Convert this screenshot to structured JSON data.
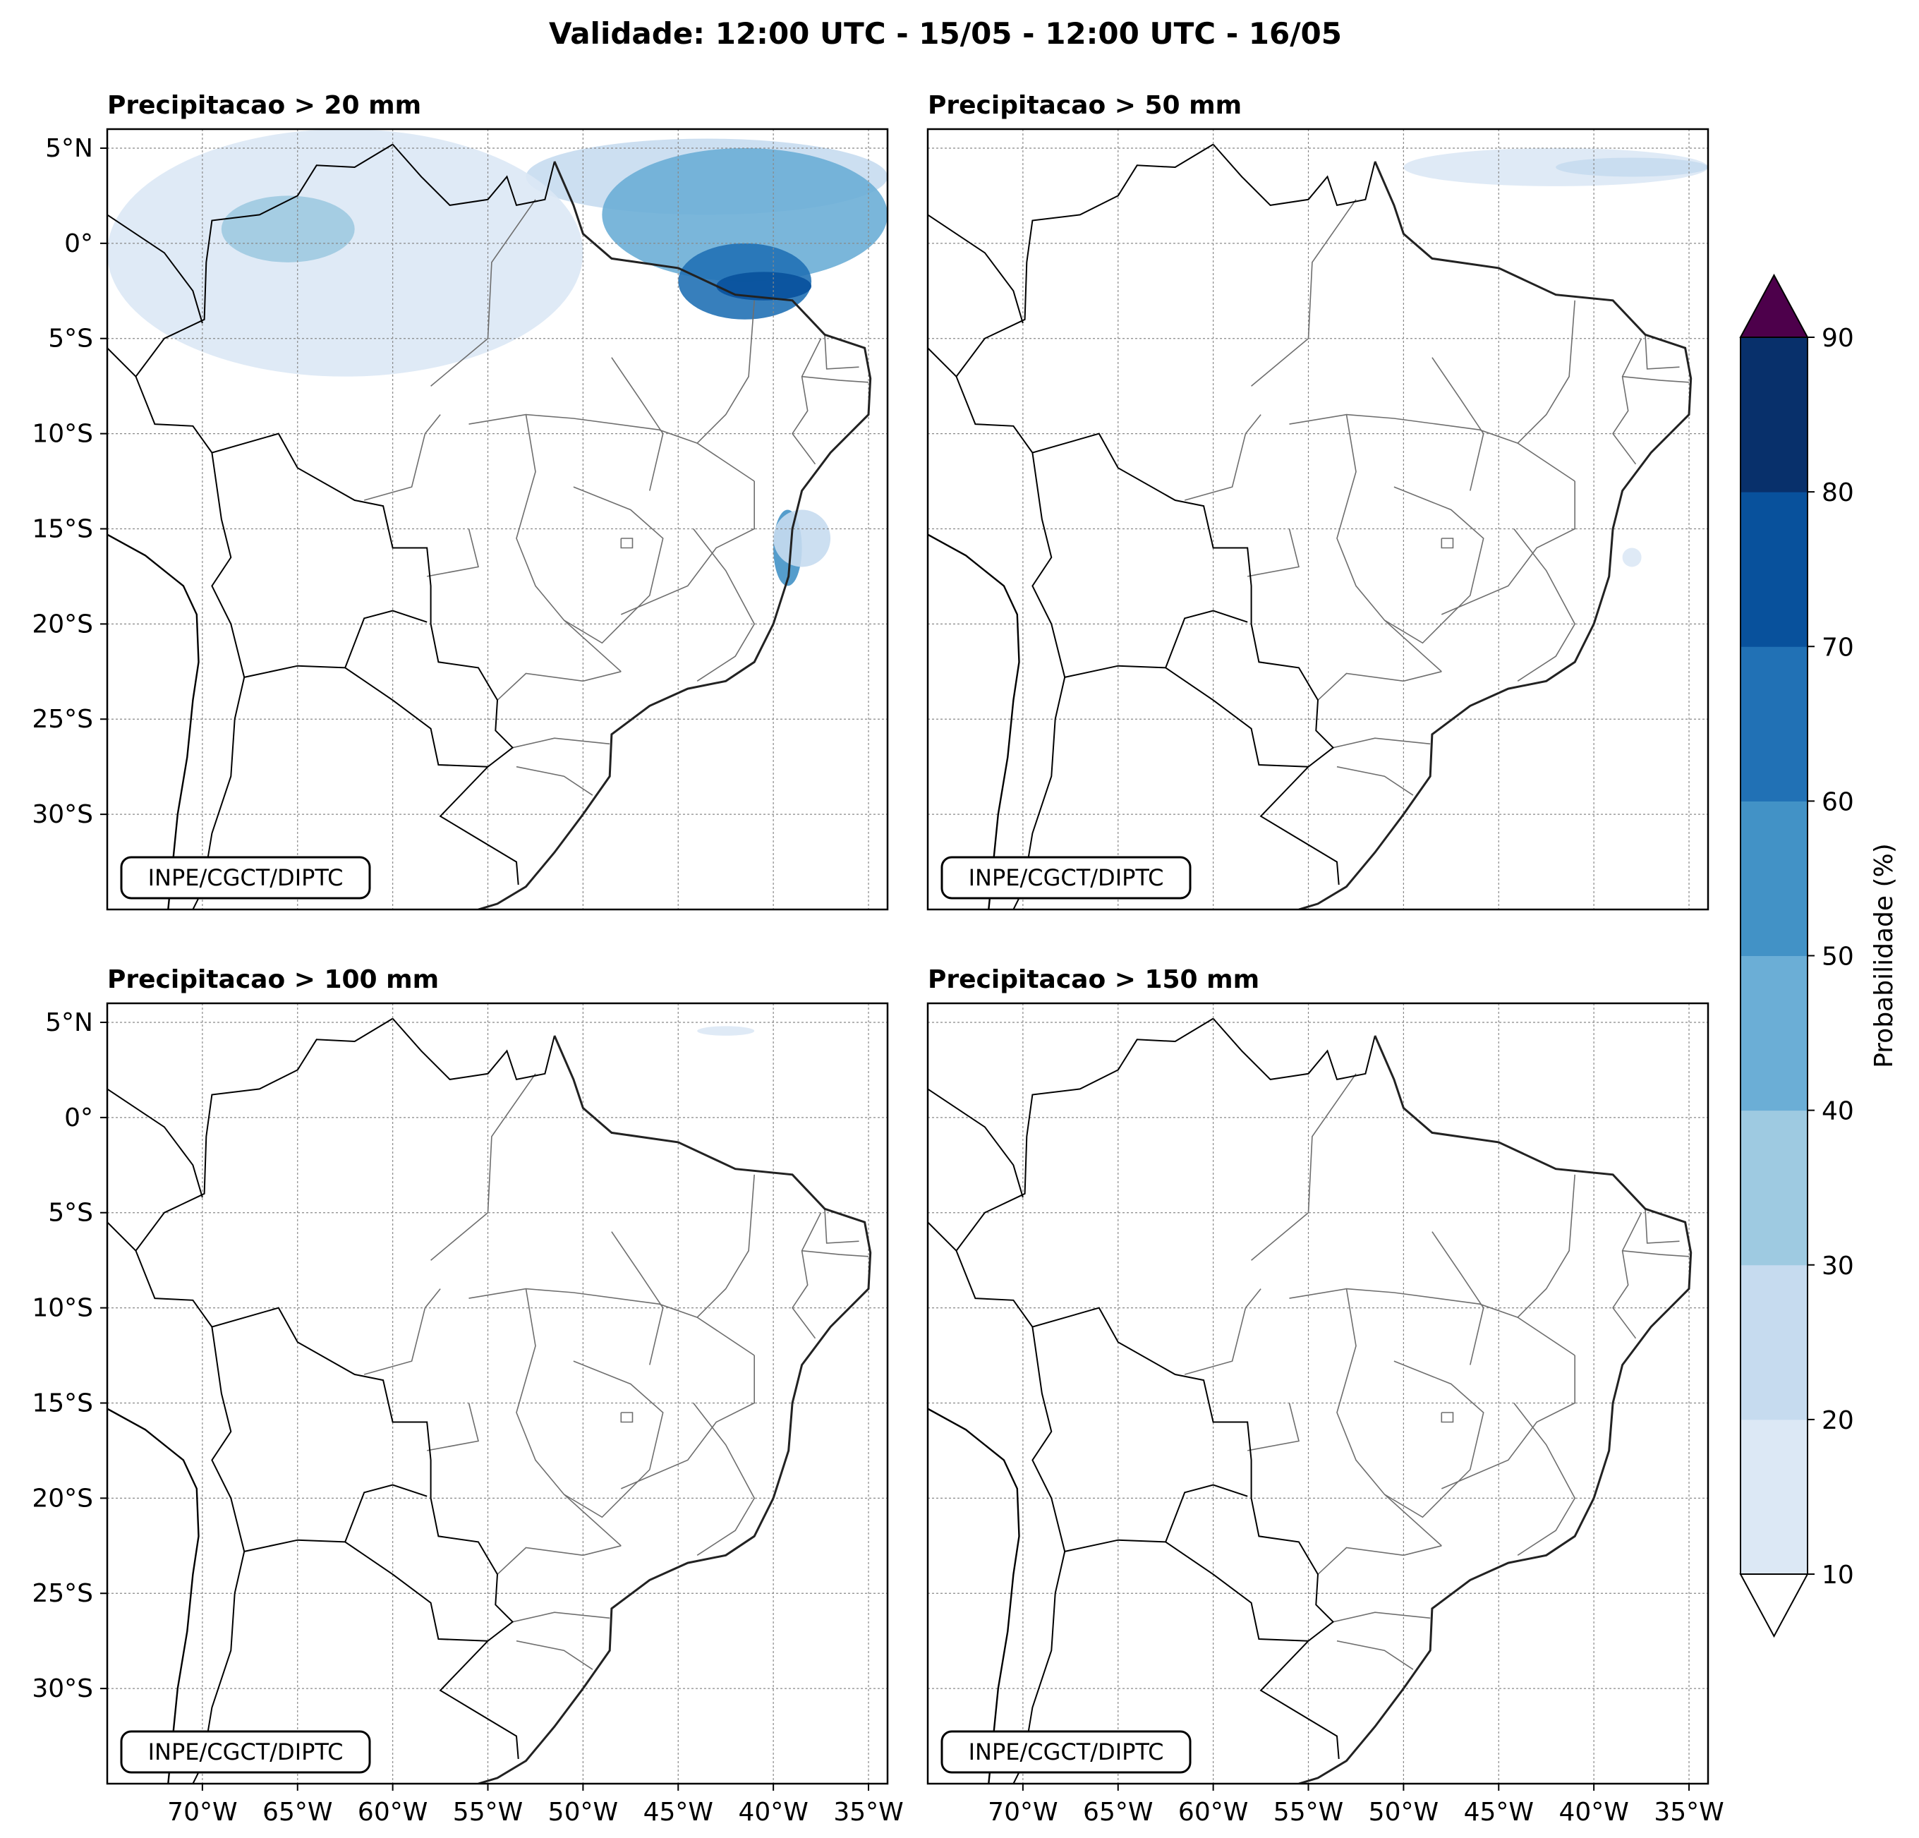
{
  "figure": {
    "title": "Validade: 12:00 UTC - 15/05 - 12:00 UTC - 16/05",
    "credit": "INPE/CGCT/DIPTC"
  },
  "axes": {
    "lon_ticks": [
      "70°W",
      "65°W",
      "60°W",
      "55°W",
      "50°W",
      "45°W",
      "40°W",
      "35°W"
    ],
    "lat_ticks": [
      "5°N",
      "0°",
      "5°S",
      "10°S",
      "15°S",
      "20°S",
      "25°S",
      "30°S"
    ],
    "lon_range": [
      -75,
      -34
    ],
    "lat_range": [
      -35,
      6
    ]
  },
  "panels": [
    {
      "title": "Precipitacao > 20 mm",
      "threshold_mm": 20
    },
    {
      "title": "Precipitacao > 50 mm",
      "threshold_mm": 50
    },
    {
      "title": "Precipitacao > 100 mm",
      "threshold_mm": 100
    },
    {
      "title": "Precipitacao > 150 mm",
      "threshold_mm": 150
    }
  ],
  "colorbar": {
    "label": "Probabilidade (%)",
    "ticks": [
      "10",
      "20",
      "30",
      "40",
      "50",
      "60",
      "70",
      "80",
      "90"
    ],
    "levels": [
      10,
      20,
      30,
      40,
      50,
      60,
      70,
      80,
      90
    ],
    "colors": [
      "#dce8f5",
      "#c6dbef",
      "#9ecae1",
      "#6baed6",
      "#4292c6",
      "#2171b5",
      "#08519c",
      "#08306b"
    ],
    "over_color": "#4d004b",
    "under_color": "#ffffff"
  },
  "precip_areas": [
    {
      "panel": 0,
      "level": 20,
      "lat": [
        1.5,
        5.5
      ],
      "lon": [
        -53,
        -34
      ]
    },
    {
      "panel": 0,
      "level": 40,
      "lat": [
        -2,
        5
      ],
      "lon": [
        -49,
        -34
      ]
    },
    {
      "panel": 0,
      "level": 60,
      "lat": [
        -4,
        0
      ],
      "lon": [
        -45,
        -38
      ]
    },
    {
      "panel": 0,
      "level": 70,
      "lat": [
        -3,
        -1.5
      ],
      "lon": [
        -43,
        -38
      ]
    },
    {
      "panel": 0,
      "level": 10,
      "lat": [
        -7,
        6
      ],
      "lon": [
        -75,
        -50
      ]
    },
    {
      "panel": 0,
      "level": 30,
      "lat": [
        -1,
        2.5
      ],
      "lon": [
        -69,
        -62
      ]
    },
    {
      "panel": 0,
      "level": 50,
      "lat": [
        -18,
        -14
      ],
      "lon": [
        -40,
        -38.5
      ]
    },
    {
      "panel": 0,
      "level": 20,
      "lat": [
        -17,
        -14
      ],
      "lon": [
        -40,
        -37
      ]
    },
    {
      "panel": 1,
      "level": 10,
      "lat": [
        3,
        5
      ],
      "lon": [
        -50,
        -34
      ]
    },
    {
      "panel": 1,
      "level": 20,
      "lat": [
        3.5,
        4.5
      ],
      "lon": [
        -42,
        -34
      ]
    },
    {
      "panel": 1,
      "level": 10,
      "lat": [
        -17,
        -16
      ],
      "lon": [
        -38.5,
        -37.5
      ]
    },
    {
      "panel": 2,
      "level": 10,
      "lat": [
        4.3,
        4.8
      ],
      "lon": [
        -44,
        -41
      ]
    }
  ]
}
